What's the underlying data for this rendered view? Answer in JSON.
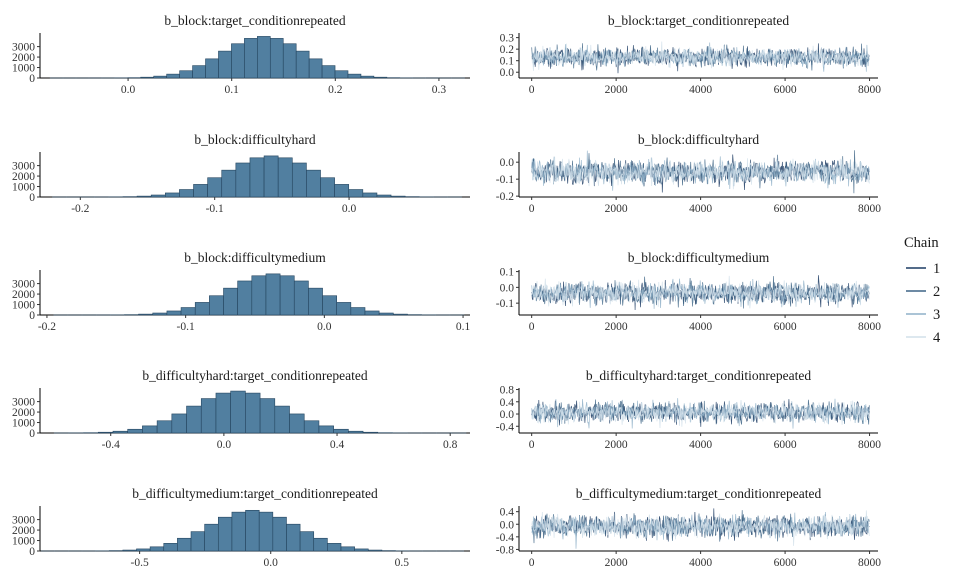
{
  "legend": {
    "title": "Chain",
    "entries": [
      {
        "label": "1",
        "color": "#1c3b63"
      },
      {
        "label": "2",
        "color": "#3d6485"
      },
      {
        "label": "3",
        "color": "#8fb0c8"
      },
      {
        "label": "4",
        "color": "#d2e0ea"
      }
    ]
  },
  "colors": {
    "hist_fill": "#517fa0",
    "hist_stroke": "#24445e",
    "trace_band": "#c3d6e5"
  },
  "chart_data": [
    {
      "parameter": "b_block:target_conditionrepeated",
      "hist": {
        "type": "bar",
        "title": "b_block:target_conditionrepeated",
        "xlim": [
          -0.085,
          0.33
        ],
        "ylim": [
          0,
          4300
        ],
        "x_ticks": [
          0.0,
          0.1,
          0.2,
          0.3
        ],
        "x_tick_labels": [
          "0.0",
          "0.1",
          "0.2",
          "0.3"
        ],
        "y_ticks": [
          0,
          1000,
          2000,
          3000
        ],
        "y_tick_labels": [
          "0",
          "1000",
          "2000",
          "3000"
        ],
        "mean": 0.131,
        "sd": 0.04,
        "bin_width": 0.0125,
        "total_draws": 32000
      },
      "trace": {
        "type": "line",
        "title": "b_block:target_conditionrepeated",
        "xlim": [
          -300,
          8200
        ],
        "ylim": [
          -0.05,
          0.34
        ],
        "x_ticks": [
          0,
          2000,
          4000,
          6000,
          8000
        ],
        "x_tick_labels": [
          "0",
          "2000",
          "4000",
          "6000",
          "8000"
        ],
        "y_ticks": [
          0.0,
          0.1,
          0.2,
          0.3
        ],
        "y_tick_labels": [
          "0.0",
          "0.1",
          "0.2",
          "0.3"
        ],
        "mean": 0.131,
        "sd": 0.04,
        "iterations": 8000
      }
    },
    {
      "parameter": "b_block:difficultyhard",
      "hist": {
        "type": "bar",
        "title": "b_block:difficultyhard",
        "xlim": [
          -0.23,
          0.09
        ],
        "ylim": [
          0,
          4300
        ],
        "x_ticks": [
          -0.2,
          -0.1,
          0.0
        ],
        "x_tick_labels": [
          "-0.2",
          "-0.1",
          "0.0"
        ],
        "y_ticks": [
          0,
          1000,
          2000,
          3000
        ],
        "y_tick_labels": [
          "0",
          "1000",
          "2000",
          "3000"
        ],
        "mean": -0.058,
        "sd": 0.034,
        "bin_width": 0.0105,
        "total_draws": 32000
      },
      "trace": {
        "type": "line",
        "title": "b_block:difficultyhard",
        "xlim": [
          -300,
          8200
        ],
        "ylim": [
          -0.205,
          0.06
        ],
        "x_ticks": [
          0,
          2000,
          4000,
          6000,
          8000
        ],
        "x_tick_labels": [
          "0",
          "2000",
          "4000",
          "6000",
          "8000"
        ],
        "y_ticks": [
          -0.2,
          -0.1,
          0.0
        ],
        "y_tick_labels": [
          "-0.2",
          "-0.1",
          "0.0"
        ],
        "mean": -0.058,
        "sd": 0.034,
        "iterations": 8000
      }
    },
    {
      "parameter": "b_block:difficultymedium",
      "hist": {
        "type": "bar",
        "title": "b_block:difficultymedium",
        "xlim": [
          -0.205,
          0.105
        ],
        "ylim": [
          0,
          4300
        ],
        "x_ticks": [
          -0.2,
          -0.1,
          0.0,
          0.1
        ],
        "x_tick_labels": [
          "-0.2",
          "-0.1",
          "0.0",
          "0.1"
        ],
        "y_ticks": [
          0,
          1000,
          2000,
          3000
        ],
        "y_tick_labels": [
          "0",
          "1000",
          "2000",
          "3000"
        ],
        "mean": -0.037,
        "sd": 0.033,
        "bin_width": 0.0102,
        "total_draws": 32000
      },
      "trace": {
        "type": "line",
        "title": "b_block:difficultymedium",
        "xlim": [
          -300,
          8200
        ],
        "ylim": [
          -0.175,
          0.11
        ],
        "x_ticks": [
          0,
          2000,
          4000,
          6000,
          8000
        ],
        "x_tick_labels": [
          "0",
          "2000",
          "4000",
          "6000",
          "8000"
        ],
        "y_ticks": [
          -0.1,
          0.0,
          0.1
        ],
        "y_tick_labels": [
          "-0.1",
          "0.0",
          "0.1"
        ],
        "mean": -0.037,
        "sd": 0.033,
        "iterations": 8000
      }
    },
    {
      "parameter": "b_difficultyhard:target_conditionrepeated",
      "hist": {
        "type": "bar",
        "title": "b_difficultyhard:target_conditionrepeated",
        "xlim": [
          -0.65,
          0.87
        ],
        "ylim": [
          0,
          4300
        ],
        "x_ticks": [
          -0.4,
          0.0,
          0.4,
          0.8
        ],
        "x_tick_labels": [
          "-0.4",
          "0.0",
          "0.4",
          "0.8"
        ],
        "y_ticks": [
          0,
          1000,
          2000,
          3000
        ],
        "y_tick_labels": [
          "0",
          "1000",
          "2000",
          "3000"
        ],
        "mean": 0.05,
        "sd": 0.165,
        "bin_width": 0.052,
        "total_draws": 32000
      },
      "trace": {
        "type": "line",
        "title": "b_difficultyhard:target_conditionrepeated",
        "xlim": [
          -300,
          8200
        ],
        "ylim": [
          -0.62,
          0.85
        ],
        "x_ticks": [
          0,
          2000,
          4000,
          6000,
          8000
        ],
        "x_tick_labels": [
          "0",
          "2000",
          "4000",
          "6000",
          "8000"
        ],
        "y_ticks": [
          -0.4,
          0.0,
          0.4,
          0.8
        ],
        "y_tick_labels": [
          "-0.4",
          "0.0",
          "0.4",
          "0.8"
        ],
        "mean": 0.05,
        "sd": 0.165,
        "iterations": 8000
      }
    },
    {
      "parameter": "b_difficultymedium:target_conditionrepeated",
      "hist": {
        "type": "bar",
        "title": "b_difficultymedium:target_conditionrepeated",
        "xlim": [
          -0.88,
          0.76
        ],
        "ylim": [
          0,
          4300
        ],
        "x_ticks": [
          -0.5,
          0.0,
          0.5
        ],
        "x_tick_labels": [
          "-0.5",
          "0.0",
          "0.5"
        ],
        "y_ticks": [
          0,
          1000,
          2000,
          3000
        ],
        "y_tick_labels": [
          "0",
          "1000",
          "2000",
          "3000"
        ],
        "mean": -0.07,
        "sd": 0.17,
        "bin_width": 0.052,
        "total_draws": 32000
      },
      "trace": {
        "type": "line",
        "title": "b_difficultymedium:target_conditionrepeated",
        "xlim": [
          -300,
          8200
        ],
        "ylim": [
          -0.85,
          0.58
        ],
        "x_ticks": [
          0,
          2000,
          4000,
          6000,
          8000
        ],
        "x_tick_labels": [
          "0",
          "2000",
          "4000",
          "6000",
          "8000"
        ],
        "y_ticks": [
          -0.8,
          -0.4,
          0.0,
          0.4
        ],
        "y_tick_labels": [
          "-0.8",
          "-0.4",
          "0.0",
          "0.4"
        ],
        "mean": -0.07,
        "sd": 0.17,
        "iterations": 8000
      }
    }
  ]
}
